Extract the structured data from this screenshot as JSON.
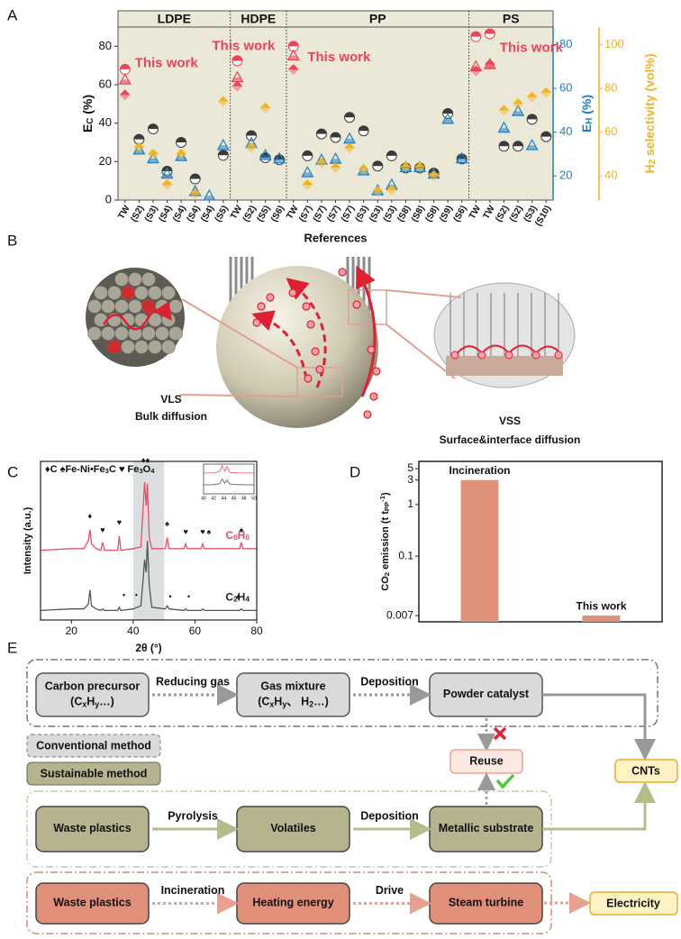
{
  "panel_labels": [
    "A",
    "B",
    "C",
    "D",
    "E"
  ],
  "chart_data": [
    {
      "type": "scatter",
      "x_label": "References",
      "highlight_category": "TW",
      "highlight_color": "#e8455a",
      "groups": [
        {
          "name": "LDPE",
          "categories": [
            "TW",
            "(S2)",
            "(S3)",
            "(S4)",
            "(S4)",
            "(S4)",
            "(S4)",
            "(S5)"
          ]
        },
        {
          "name": "HDPE",
          "categories": [
            "TW",
            "(S2)",
            "(S5)",
            "(S6)"
          ]
        },
        {
          "name": "PP",
          "categories": [
            "TW",
            "(S7)",
            "(S7)",
            "(S7)",
            "(S7)",
            "(S3)",
            "(S3)",
            "(S3)",
            "(S8)",
            "(S8)",
            "(S8)",
            "(S9)",
            "(S6)"
          ]
        },
        {
          "name": "PS",
          "categories": [
            "TW",
            "TW",
            "(S2)",
            "(S2)",
            "(S3)",
            "(S10)"
          ]
        }
      ],
      "series": [
        {
          "name": [
            "E",
            {
              "sub": "C"
            },
            " (%)"
          ],
          "axis": "y",
          "marker": "circle",
          "color": "#3a3a3a",
          "values": [
            68,
            31.6,
            37,
            15,
            30,
            11,
            null,
            23.3,
            72.5,
            33.5,
            22,
            21,
            80,
            23,
            34.4,
            32.6,
            43,
            36,
            17.7,
            23,
            16.7,
            16.7,
            14,
            45,
            21.4,
            85,
            86.5,
            28,
            28,
            42,
            33
          ]
        },
        {
          "name": [
            "E",
            {
              "sub": "H"
            },
            " (%)"
          ],
          "axis": "y2",
          "marker": "triangle",
          "color": "#1f7fc4",
          "values": [
            64,
            32,
            28,
            21,
            29,
            13,
            11,
            34,
            65,
            35,
            29.5,
            28,
            75,
            21.6,
            27.4,
            27.8,
            37,
            22.5,
            13.4,
            16,
            24,
            24,
            21,
            46,
            28,
            70,
            71,
            42,
            49.6,
            34,
            null
          ]
        },
        {
          "name": [
            "H",
            {
              "sub": "2"
            },
            " selectivity (vol%)"
          ],
          "axis": "y3",
          "marker": "diamond",
          "color": "#f2b31f",
          "values": [
            77,
            53,
            50,
            36,
            50,
            32,
            null,
            74,
            81,
            53,
            71,
            null,
            88.6,
            36,
            46,
            43.7,
            52.7,
            43,
            33,
            33.5,
            44,
            44,
            40,
            null,
            null,
            88,
            91,
            70,
            73,
            76,
            78
          ]
        }
      ],
      "ylim": [
        0,
        90
      ],
      "yticks": [
        0,
        20,
        40,
        60,
        80
      ],
      "y2lim": [
        9,
        88
      ],
      "y2ticks": [
        20,
        40,
        60,
        80
      ],
      "y3lim": [
        29,
        108
      ],
      "y3ticks": [
        40,
        60,
        80,
        100
      ],
      "annotations": [
        {
          "text": "This work",
          "x": 0.7,
          "y": 71
        },
        {
          "text": "This work",
          "x": 6.2,
          "y": 80
        },
        {
          "text": "This work",
          "x": 13,
          "y": 74
        },
        {
          "text": "This work",
          "x": 26.7,
          "y": 79
        }
      ]
    },
    {
      "type": "line",
      "x_label": [
        "2θ (°)"
      ],
      "y_label": "Intensity (a.u.)",
      "legend": [
        "♦C ♠Fe-Ni•Fe",
        {
          "sub": "3"
        },
        "C ♥ Fe",
        {
          "sub": "3"
        },
        "O",
        {
          "sub": "4"
        }
      ],
      "xlim": [
        10,
        80
      ],
      "xticks": [
        20,
        40,
        60,
        80
      ],
      "ylim": [
        0,
        100
      ],
      "highlight_range": [
        40,
        50
      ],
      "series": [
        {
          "name": [
            "C",
            {
              "sub": "6"
            },
            "H",
            {
              "sub": "6"
            }
          ],
          "color": "#e8506a",
          "x": [
            10,
            20,
            24,
            25.5,
            26,
            26.5,
            28,
            29.5,
            30.1,
            30.7,
            35,
            35.5,
            36,
            40,
            42.5,
            43.2,
            43.7,
            44.2,
            44.6,
            45.2,
            46,
            50.4,
            51,
            51.6,
            56.5,
            57,
            57.5,
            62,
            62.5,
            63,
            74.5,
            75,
            75.5,
            80
          ],
          "values": [
            44,
            45,
            45,
            50,
            57,
            48,
            45,
            44,
            49,
            44,
            44,
            53,
            44,
            45,
            46,
            70,
            87,
            72,
            86,
            52,
            45,
            45,
            52,
            45,
            45,
            48,
            45,
            45,
            48,
            45,
            45,
            49,
            45,
            45
          ]
        },
        {
          "name": [
            "C",
            {
              "sub": "2"
            },
            "H",
            {
              "sub": "4"
            }
          ],
          "color": "#555555",
          "x": [
            10,
            20,
            24,
            25.5,
            26,
            26.5,
            28,
            29.5,
            30.1,
            30.7,
            35,
            35.5,
            36,
            40,
            42.5,
            43.2,
            43.7,
            44.2,
            44.6,
            45.2,
            46,
            50.4,
            51,
            51.6,
            56.5,
            57,
            57.5,
            62,
            62.5,
            63,
            74.5,
            75,
            75.5,
            80
          ],
          "values": [
            6,
            7,
            7,
            10,
            19,
            9,
            7,
            6,
            7,
            6,
            6,
            8,
            6,
            7,
            9,
            25,
            38,
            30,
            50,
            22,
            8,
            7,
            9,
            7,
            6,
            7,
            6,
            6,
            7,
            6,
            6,
            7,
            6,
            6
          ]
        }
      ],
      "peak_marks": [
        {
          "symbol": "♦",
          "x": 26,
          "y": 62
        },
        {
          "symbol": "♥",
          "x": 30.1,
          "y": 53
        },
        {
          "symbol": "♥",
          "x": 35.5,
          "y": 58
        },
        {
          "symbol": "♦♠",
          "x": 44,
          "y": 97
        },
        {
          "symbol": "♠",
          "x": 51,
          "y": 57
        },
        {
          "symbol": "♥",
          "x": 57,
          "y": 52
        },
        {
          "symbol": "♥",
          "x": 62.5,
          "y": 52
        },
        {
          "symbol": "♠",
          "x": 64.5,
          "y": 52
        },
        {
          "symbol": "♠",
          "x": 75,
          "y": 53
        },
        {
          "symbol": "•",
          "x": 37,
          "y": 12
        },
        {
          "symbol": "•",
          "x": 41,
          "y": 12
        },
        {
          "symbol": "•",
          "x": 52,
          "y": 11
        },
        {
          "symbol": "•",
          "x": 58,
          "y": 11
        },
        {
          "symbol": "♠",
          "x": 74,
          "y": 11
        }
      ],
      "inset": {
        "xlim": [
          40,
          50
        ],
        "ylim": [
          0,
          100
        ],
        "xticks": [
          40,
          42,
          44,
          46,
          48,
          50
        ],
        "x": [
          40,
          42,
          43.2,
          43.7,
          44.2,
          44.6,
          45.2,
          47,
          50
        ],
        "series": [
          {
            "color": "#e8506a",
            "values": [
              70,
              70,
              75,
              95,
              76,
              92,
              72,
              70,
              70
            ]
          },
          {
            "color": "#555555",
            "values": [
              30,
              31,
              34,
              50,
              36,
              46,
              33,
              31,
              30
            ]
          }
        ]
      }
    },
    {
      "type": "bar",
      "log_scale": true,
      "y_label": [
        "CO",
        {
          "sub": "2"
        },
        " emission (t t",
        {
          "sub": "PP"
        },
        {
          "sup": "-1"
        },
        ")"
      ],
      "categories": [
        "Incineration",
        "This work"
      ],
      "values": [
        3,
        0.007
      ],
      "color": "#e0917a",
      "ylim": [
        0.0053,
        6.9
      ],
      "yticks": [
        0.007,
        0.1,
        1,
        3,
        5
      ]
    }
  ],
  "diagram": {
    "left": [
      "VLS",
      "Bulk diffusion"
    ],
    "right": [
      "VSS",
      "Surface&interface diffusion"
    ]
  },
  "flowchart": {
    "rows": [
      {
        "nodes": [
          {
            "lines": [
              [
                "Carbon precursor"
              ],
              [
                "(C",
                {
                  "sub": "x"
                },
                "H",
                {
                  "sub": "y"
                },
                "…)"
              ]
            ]
          },
          {
            "lines": [
              [
                "Gas mixture"
              ],
              [
                "(C",
                {
                  "sub": "x"
                },
                "H",
                {
                  "sub": "y"
                },
                "、 H",
                {
                  "sub": "2"
                },
                "…)"
              ]
            ]
          },
          {
            "lines": [
              [
                "Powder catalyst"
              ]
            ]
          }
        ],
        "edges": [
          "Reducing gas",
          "Deposition"
        ]
      },
      {
        "nodes": [
          {
            "lines": [
              [
                "Waste plastics"
              ]
            ]
          },
          {
            "lines": [
              [
                "Volatiles"
              ]
            ]
          },
          {
            "lines": [
              [
                "Metallic substrate"
              ]
            ]
          }
        ],
        "edges": [
          "Pyrolysis",
          "Deposition"
        ]
      },
      {
        "nodes": [
          {
            "lines": [
              [
                "Waste plastics"
              ]
            ]
          },
          {
            "lines": [
              [
                "Heating energy"
              ]
            ]
          },
          {
            "lines": [
              [
                "Steam turbine"
              ]
            ]
          }
        ],
        "edges": [
          "Incineration",
          "Drive"
        ]
      }
    ],
    "legend": [
      "Conventional method",
      "Sustainable method"
    ],
    "reuse": "Reuse",
    "product": "CNTs",
    "output": "Electricity"
  }
}
